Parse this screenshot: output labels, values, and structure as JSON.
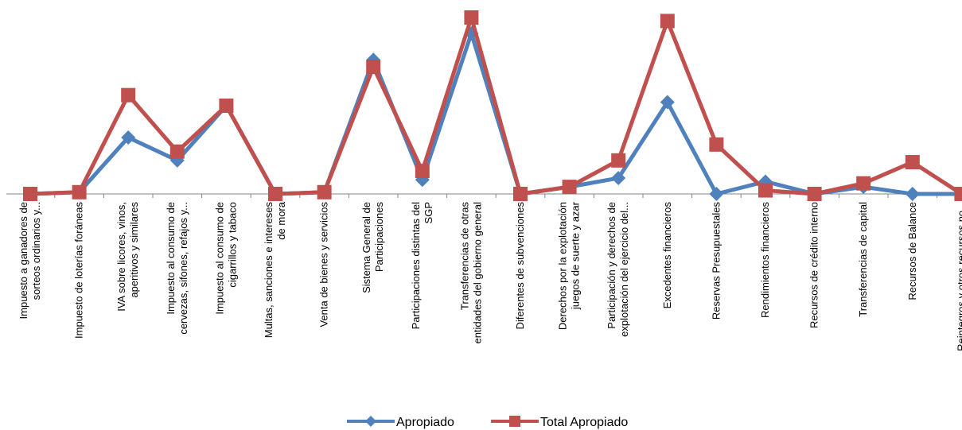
{
  "chart_data": {
    "type": "line",
    "title": "",
    "xlabel": "",
    "ylabel": "",
    "grid": false,
    "y_axis_visible": false,
    "ylim": [
      0,
      100
    ],
    "legend_position": "bottom",
    "categories": [
      [
        "Impuesto a ganadores de",
        "sorteos ordinarios y..."
      ],
      [
        "Impuesto de loterías foráneas"
      ],
      [
        "IVA sobre licores, vinos,",
        "aperitivos y similares"
      ],
      [
        "Impuesto al consumo de",
        "cervezas, sifones, refajos y..."
      ],
      [
        "Impuesto al consumo de",
        "cigarrillos y tabaco"
      ],
      [
        "Multas, sanciones e intereses",
        "de mora"
      ],
      [
        "Venta de bienes y servicios"
      ],
      [
        "Sistema General de",
        "Participaciones"
      ],
      [
        "Participaciones distintas del",
        "SGP"
      ],
      [
        "Transferencias de otras",
        "entidades del gobierno general"
      ],
      [
        "Diferentes de subvenciones"
      ],
      [
        "Derechos por la explotación",
        "juegos de suerte y azar"
      ],
      [
        "Participación y derechos de",
        "explotación del ejercicio del..."
      ],
      [
        "Excedentes financieros"
      ],
      [
        "Reservas Presupuestales"
      ],
      [
        "Rendimientos financieros"
      ],
      [
        "Recursos de crédito interno"
      ],
      [
        "Transferencias de capital"
      ],
      [
        "Recursos de Balance"
      ],
      [
        "Reintegros y otros recursos no..."
      ]
    ],
    "series": [
      {
        "name": "Apropiado",
        "color": "#4F81BD",
        "marker": "diamond",
        "values": [
          0,
          1,
          32,
          19,
          50,
          0,
          1,
          76,
          8,
          91,
          0,
          4,
          9,
          52,
          0,
          7,
          0,
          4,
          0,
          0
        ]
      },
      {
        "name": "Total Apropiado",
        "color": "#C0504D",
        "marker": "square",
        "values": [
          0,
          1,
          56,
          24,
          50,
          0,
          1,
          72,
          13,
          100,
          0,
          4,
          19,
          98,
          28,
          2,
          0,
          6,
          18,
          0
        ]
      }
    ]
  }
}
